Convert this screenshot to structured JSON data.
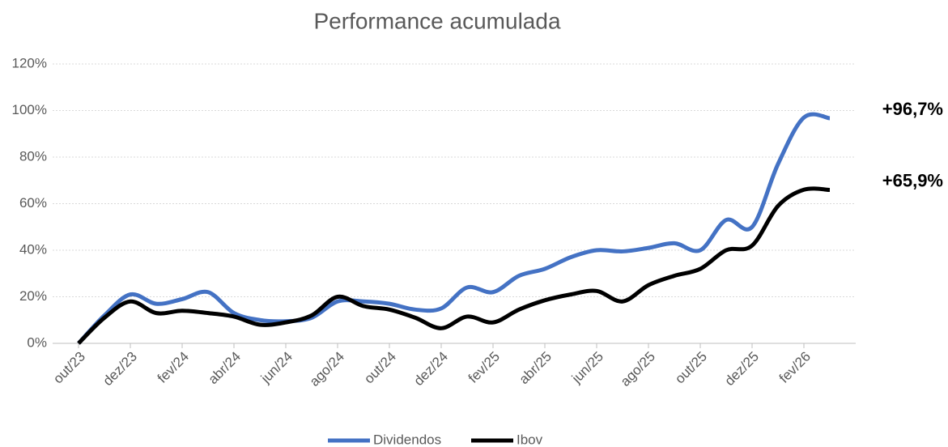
{
  "chart_data": {
    "type": "line",
    "title": "Performance acumulada",
    "categories": [
      "out/23",
      null,
      "dez/23",
      null,
      "fev/24",
      null,
      "abr/24",
      null,
      "jun/24",
      null,
      "ago/24",
      null,
      "out/24",
      null,
      "dez/24",
      null,
      "fev/25",
      null,
      "abr/25",
      null,
      "jun/25",
      null,
      "ago/25",
      null,
      "out/25",
      null,
      "dez/25",
      null,
      "fev/26",
      null
    ],
    "series": [
      {
        "name": "Dividendos",
        "color": "#4472c4",
        "values": [
          0,
          12,
          21,
          17,
          19,
          22,
          13,
          10,
          9.5,
          11,
          18,
          18,
          17,
          14.5,
          15,
          24,
          22,
          29,
          32,
          37,
          40,
          39.5,
          41,
          43,
          40,
          53,
          50,
          77,
          97,
          96.7
        ]
      },
      {
        "name": "Ibov",
        "color": "#000000",
        "values": [
          0,
          11,
          18,
          13,
          14,
          13,
          11.5,
          8,
          9,
          12,
          20,
          16,
          14.5,
          11,
          6.5,
          11.5,
          9,
          14.5,
          18.5,
          21,
          22.5,
          18,
          25,
          29,
          32,
          40,
          42,
          59,
          66,
          65.9
        ]
      }
    ],
    "annotations": [
      "+96,7%",
      "+65,9%"
    ],
    "ylim": [
      0,
      120
    ],
    "yticks": [
      {
        "value": 0,
        "label": "0%"
      },
      {
        "value": 20,
        "label": "20%"
      },
      {
        "value": 40,
        "label": "40%"
      },
      {
        "value": 60,
        "label": "60%"
      },
      {
        "value": 80,
        "label": "80%"
      },
      {
        "value": 100,
        "label": "100%"
      },
      {
        "value": 120,
        "label": "120%"
      }
    ],
    "grid": true,
    "legend": "bottom"
  }
}
